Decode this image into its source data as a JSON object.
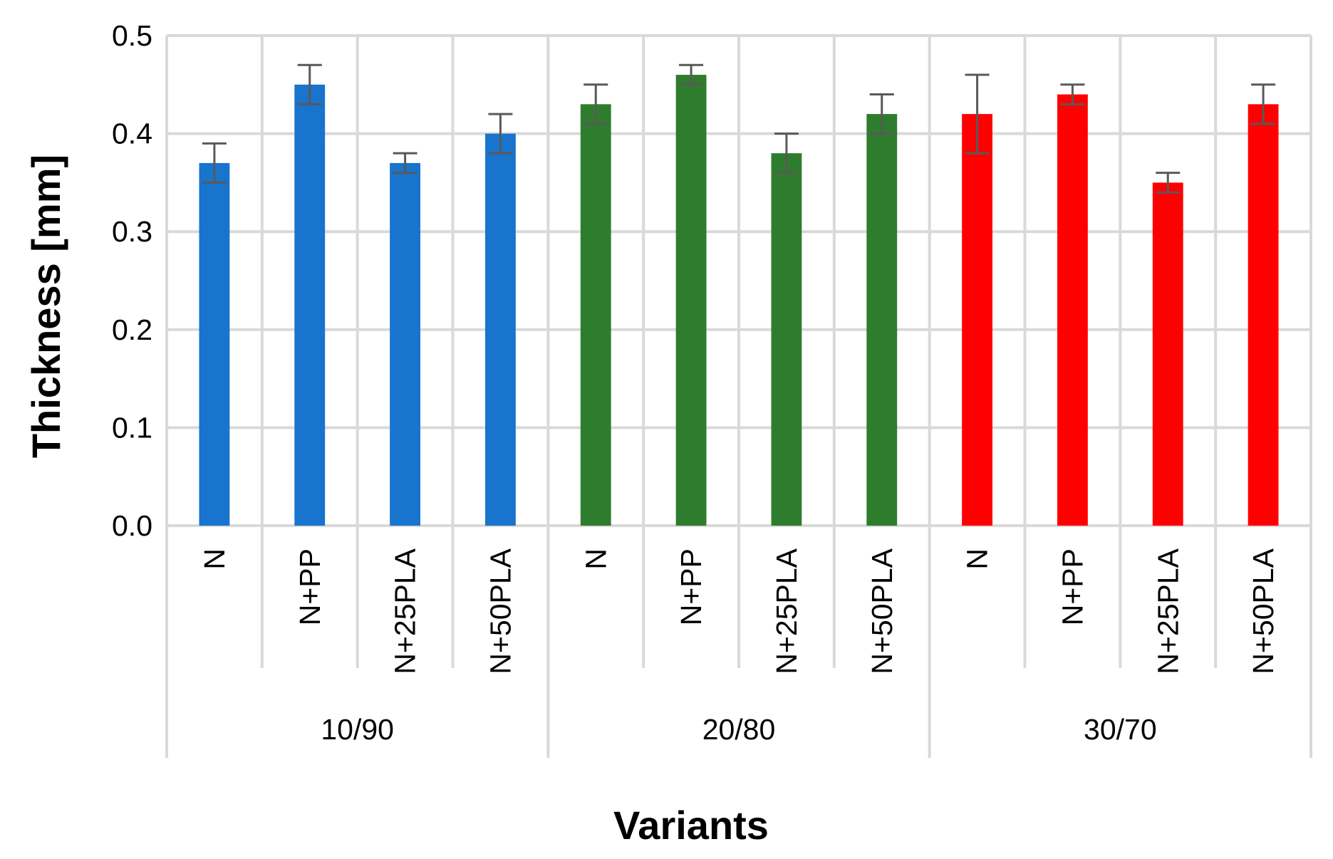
{
  "chart_data": {
    "type": "bar",
    "title": "",
    "xlabel": "Variants",
    "ylabel": "Thickness [mm]",
    "ylim": [
      0,
      0.5
    ],
    "yticks": [
      "0.0",
      "0.1",
      "0.2",
      "0.3",
      "0.4",
      "0.5"
    ],
    "grid": true,
    "legend": "none",
    "groups": [
      {
        "name": "10/90",
        "color": "#1874CD",
        "categories": [
          "N",
          "N+PP",
          "N+25PLA",
          "N+50PLA"
        ],
        "values": [
          0.37,
          0.45,
          0.37,
          0.4
        ],
        "errors": [
          0.02,
          0.02,
          0.01,
          0.02
        ]
      },
      {
        "name": "20/80",
        "color": "#2E7D2E",
        "categories": [
          "N",
          "N+PP",
          "N+25PLA",
          "N+50PLA"
        ],
        "values": [
          0.43,
          0.46,
          0.38,
          0.42
        ],
        "errors": [
          0.02,
          0.01,
          0.02,
          0.02
        ]
      },
      {
        "name": "30/70",
        "color": "#FF0000",
        "categories": [
          "N",
          "N+PP",
          "N+25PLA",
          "N+50PLA"
        ],
        "values": [
          0.42,
          0.44,
          0.35,
          0.43
        ],
        "errors": [
          0.04,
          0.01,
          0.01,
          0.02
        ]
      }
    ]
  }
}
